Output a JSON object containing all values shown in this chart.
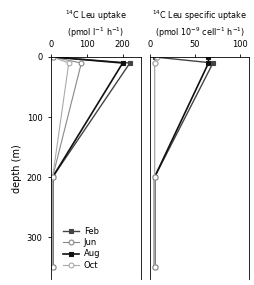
{
  "depths": [
    0,
    10,
    200,
    350
  ],
  "left_panel": {
    "title_line1": "$^{14}$C Leu uptake",
    "title_line2": "(pmol l$^{-1}$ h$^{-1}$)",
    "xlim": [
      0,
      250
    ],
    "xticks": [
      0,
      100,
      200
    ],
    "Feb": [
      5,
      220,
      5,
      5
    ],
    "Jun": [
      5,
      85,
      5,
      5
    ],
    "Aug": [
      5,
      200,
      5,
      5
    ],
    "Oct": [
      5,
      50,
      5,
      5
    ]
  },
  "right_panel": {
    "title_line1": "$^{14}$C Leu specific uptake",
    "title_line2": "(pmol 10$^{-9}$ cell$^{-1}$ h$^{-1}$)",
    "xlim": [
      0,
      110
    ],
    "xticks": [
      0,
      50,
      100
    ],
    "Feb": [
      5,
      70,
      5,
      5
    ],
    "Jun": [
      8,
      5,
      5,
      5
    ],
    "Aug": [
      65,
      65,
      5,
      5
    ],
    "Oct": [
      8,
      5,
      5,
      5
    ]
  },
  "ylim_top": 0,
  "ylim_bottom": 370,
  "yticks": [
    0,
    100,
    200,
    300
  ],
  "ylabel": "depth (m)",
  "series": {
    "Feb": {
      "color": "#444444",
      "marker": "s",
      "filled": true,
      "label": "Feb",
      "lw": 1.0,
      "ms": 3.5
    },
    "Jun": {
      "color": "#888888",
      "marker": "o",
      "filled": false,
      "label": "Jun",
      "lw": 0.8,
      "ms": 3.5
    },
    "Aug": {
      "color": "#111111",
      "marker": "s",
      "filled": true,
      "label": "Aug",
      "lw": 1.2,
      "ms": 3.5
    },
    "Oct": {
      "color": "#aaaaaa",
      "marker": "o",
      "filled": false,
      "label": "Oct",
      "lw": 0.8,
      "ms": 3.5
    }
  },
  "legend_order": [
    "Feb",
    "Jun",
    "Aug",
    "Oct"
  ],
  "background_color": "#ffffff"
}
